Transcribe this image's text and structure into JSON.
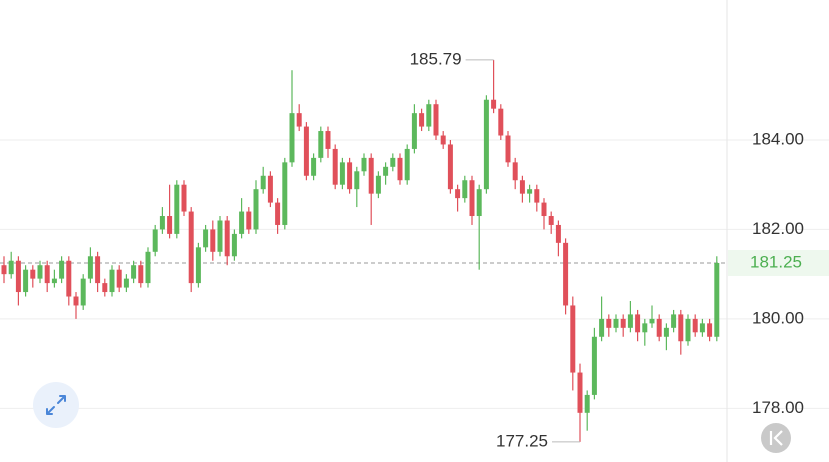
{
  "chart_data": {
    "type": "candlestick",
    "ylim": [
      176.8,
      187.13
    ],
    "yticks": [
      {
        "value": 178,
        "label": "178.00"
      },
      {
        "value": 180,
        "label": "180.00"
      },
      {
        "value": 182,
        "label": "182.00"
      },
      {
        "value": 184,
        "label": "184.00"
      }
    ],
    "grid": true,
    "up_color": "#5cb85c",
    "down_color": "#e0505a",
    "last_price": 181.25,
    "max_marker": 185.79,
    "min_marker": 177.25,
    "open": [
      181.2,
      181.0,
      181.3,
      180.6,
      181.1,
      180.9,
      181.2,
      180.8,
      180.9,
      181.3,
      180.5,
      180.3,
      180.9,
      181.4,
      180.8,
      180.6,
      181.1,
      180.7,
      180.9,
      181.2,
      180.8,
      181.5,
      182.0,
      182.3,
      181.9,
      183.0,
      182.4,
      180.8,
      181.6,
      182.0,
      181.5,
      182.2,
      181.4,
      181.9,
      182.4,
      182.0,
      182.9,
      183.2,
      182.6,
      182.1,
      183.5,
      184.6,
      184.3,
      183.2,
      183.6,
      184.2,
      183.8,
      183.0,
      183.5,
      182.9,
      183.3,
      183.6,
      182.8,
      183.2,
      183.4,
      183.6,
      183.1,
      183.8,
      184.6,
      184.3,
      184.8,
      184.1,
      183.9,
      182.9,
      182.7,
      183.1,
      182.3,
      182.9,
      184.9,
      184.7,
      184.1,
      183.5,
      183.1,
      182.8,
      182.9,
      182.6,
      182.3,
      182.1,
      181.7,
      180.3,
      178.8,
      177.9,
      178.3,
      179.6,
      180.0,
      179.8,
      180.0,
      179.8,
      180.1,
      179.7,
      179.9,
      180.0,
      179.6,
      179.8,
      180.1,
      179.5,
      180.0,
      179.7,
      179.9,
      179.6
    ],
    "high": [
      181.4,
      181.5,
      181.4,
      181.2,
      181.2,
      181.3,
      181.3,
      181.1,
      181.4,
      181.4,
      180.6,
      181.0,
      181.6,
      181.5,
      180.9,
      181.2,
      181.2,
      181.0,
      181.3,
      181.3,
      181.6,
      182.1,
      182.5,
      183.0,
      183.1,
      183.1,
      182.5,
      181.7,
      182.1,
      182.2,
      182.3,
      182.3,
      182.0,
      182.7,
      182.5,
      183.1,
      183.4,
      183.3,
      182.7,
      183.6,
      185.56,
      184.8,
      184.4,
      183.7,
      184.3,
      184.3,
      183.9,
      183.6,
      183.6,
      183.4,
      183.7,
      183.7,
      183.3,
      183.5,
      183.7,
      183.7,
      183.9,
      184.8,
      184.7,
      184.9,
      184.9,
      184.2,
      184.0,
      183.0,
      183.2,
      183.2,
      183.0,
      185.0,
      185.79,
      184.8,
      184.2,
      183.6,
      183.2,
      183.0,
      183.0,
      182.7,
      182.4,
      182.2,
      181.8,
      180.5,
      179.0,
      178.4,
      179.8,
      180.5,
      180.1,
      180.1,
      180.1,
      180.4,
      180.2,
      180.0,
      180.3,
      180.1,
      179.9,
      180.2,
      180.2,
      180.1,
      180.1,
      180.0,
      180.0,
      181.4
    ],
    "low": [
      180.8,
      180.9,
      180.3,
      180.5,
      180.7,
      180.8,
      180.6,
      180.7,
      180.8,
      180.3,
      180.0,
      180.2,
      180.8,
      180.6,
      180.5,
      180.5,
      180.6,
      180.6,
      180.8,
      180.7,
      180.7,
      181.4,
      181.9,
      181.8,
      181.8,
      182.3,
      180.6,
      180.7,
      181.5,
      181.3,
      181.4,
      181.2,
      181.3,
      181.8,
      181.9,
      181.9,
      182.8,
      182.5,
      181.9,
      182.0,
      183.4,
      184.2,
      183.1,
      183.1,
      183.5,
      183.6,
      182.9,
      182.9,
      182.8,
      182.5,
      183.2,
      182.1,
      182.7,
      183.0,
      183.3,
      183.0,
      183.0,
      183.7,
      184.2,
      184.2,
      184.0,
      183.8,
      182.8,
      182.4,
      182.6,
      182.1,
      181.1,
      182.8,
      184.6,
      184.0,
      183.4,
      182.9,
      182.6,
      182.6,
      182.4,
      182.0,
      181.9,
      181.4,
      180.1,
      178.4,
      177.25,
      177.5,
      178.2,
      179.5,
      179.6,
      179.7,
      179.6,
      179.7,
      179.5,
      179.4,
      179.8,
      179.5,
      179.3,
      179.7,
      179.2,
      179.4,
      179.6,
      179.6,
      179.5,
      179.5
    ],
    "close": [
      181.0,
      181.3,
      180.6,
      181.1,
      180.9,
      181.2,
      180.8,
      180.9,
      181.3,
      180.5,
      180.3,
      180.9,
      181.4,
      180.8,
      180.6,
      181.1,
      180.7,
      180.9,
      181.2,
      180.8,
      181.5,
      182.0,
      182.3,
      181.9,
      183.0,
      182.4,
      180.8,
      181.6,
      182.0,
      181.5,
      182.2,
      181.4,
      181.9,
      182.4,
      182.0,
      182.9,
      183.2,
      182.6,
      182.1,
      183.5,
      184.6,
      184.3,
      183.2,
      183.6,
      184.2,
      183.8,
      183.0,
      183.5,
      182.9,
      183.3,
      183.6,
      182.8,
      183.2,
      183.4,
      183.6,
      183.1,
      183.8,
      184.6,
      184.3,
      184.8,
      184.1,
      183.9,
      182.9,
      182.7,
      183.1,
      182.3,
      182.9,
      184.9,
      184.7,
      184.1,
      183.5,
      183.1,
      182.8,
      182.9,
      182.6,
      182.3,
      182.1,
      181.7,
      180.3,
      178.8,
      177.9,
      178.3,
      179.6,
      180.0,
      179.8,
      180.0,
      179.8,
      180.1,
      179.7,
      179.9,
      180.0,
      179.6,
      179.8,
      180.1,
      179.5,
      180.0,
      179.7,
      179.9,
      179.6,
      181.25
    ]
  }
}
